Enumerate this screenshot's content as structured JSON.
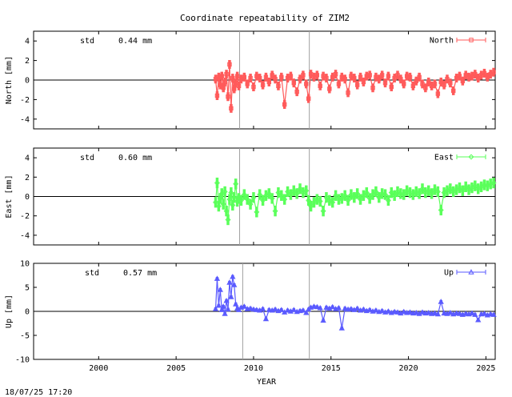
{
  "title": "Coordinate repeatability of ZIM2",
  "footer_timestamp": "18/07/25 17:20",
  "xlabel": "YEAR",
  "colors": {
    "north": "#ff5a5a",
    "east": "#5aff5a",
    "up": "#5a5aff",
    "frame": "#000000",
    "vline": "#a0a0a0"
  },
  "chart_data": [
    {
      "type": "line",
      "id": "north",
      "ylabel": "North [mm]",
      "legend": "North",
      "legend_marker": "square",
      "legend_placement": "top-right",
      "std_label": "std",
      "std_value": "0.44 mm",
      "xlim": [
        1995.8,
        2025.6
      ],
      "ylim": [
        -5,
        5
      ],
      "yticks": [
        -4,
        -2,
        0,
        2,
        4
      ],
      "xticks": [
        2000,
        2005,
        2010,
        2015,
        2020,
        2025
      ],
      "zero_line": true,
      "vlines": [
        2009.1,
        2013.6
      ],
      "series": [
        {
          "x": [
            2007.55,
            2007.65,
            2007.75,
            2007.85,
            2007.95,
            2008.05,
            2008.15,
            2008.25,
            2008.35,
            2008.45,
            2008.55,
            2008.65,
            2008.75,
            2008.85,
            2008.95,
            2009.05,
            2009.2,
            2009.4,
            2009.6,
            2009.8,
            2010.0,
            2010.2,
            2010.4,
            2010.6,
            2010.8,
            2011.0,
            2011.2,
            2011.4,
            2011.6,
            2011.8,
            2012.0,
            2012.2,
            2012.4,
            2012.6,
            2012.8,
            2013.0,
            2013.2,
            2013.4,
            2013.55,
            2013.7,
            2013.9,
            2014.1,
            2014.3,
            2014.5,
            2014.7,
            2014.9,
            2015.1,
            2015.3,
            2015.5,
            2015.7,
            2015.9,
            2016.1,
            2016.3,
            2016.5,
            2016.7,
            2016.9,
            2017.1,
            2017.3,
            2017.5,
            2017.7,
            2017.9,
            2018.1,
            2018.3,
            2018.5,
            2018.7,
            2018.9,
            2019.1,
            2019.3,
            2019.5,
            2019.7,
            2019.9,
            2020.1,
            2020.3,
            2020.5,
            2020.7,
            2020.9,
            2021.1,
            2021.3,
            2021.5,
            2021.7,
            2021.9,
            2022.1,
            2022.3,
            2022.5,
            2022.7,
            2022.9,
            2023.1,
            2023.3,
            2023.5,
            2023.7,
            2023.9,
            2024.1,
            2024.3,
            2024.5,
            2024.7,
            2024.9,
            2025.1,
            2025.3,
            2025.5
          ],
          "y": [
            0.1,
            -1.6,
            0.3,
            -0.5,
            0.4,
            -0.8,
            -0.2,
            0.6,
            -1.7,
            1.6,
            -2.9,
            0.2,
            -0.9,
            -0.3,
            0.4,
            -0.6,
            0.1,
            0.3,
            -0.4,
            0.2,
            -0.7,
            0.4,
            0.2,
            -0.5,
            0.3,
            -0.2,
            0.5,
            0.1,
            -0.6,
            0.3,
            -2.5,
            0.2,
            0.4,
            -0.3,
            -1.2,
            0.1,
            0.5,
            -0.4,
            -1.9,
            0.6,
            0.3,
            0.5,
            -0.6,
            0.4,
            0.2,
            -0.9,
            0.3,
            0.6,
            -0.4,
            0.3,
            0.1,
            -1.3,
            0.4,
            0.2,
            -0.5,
            0.3,
            -0.2,
            0.4,
            0.5,
            -0.8,
            0.3,
            0.1,
            0.5,
            -0.3,
            0.4,
            -0.7,
            0.2,
            0.5,
            0.1,
            -0.4,
            0.4,
            0.3,
            -0.6,
            -0.1,
            0.3,
            -0.4,
            -0.8,
            -0.2,
            -0.6,
            -0.4,
            -1.4,
            -0.2,
            -0.5,
            0.1,
            -0.3,
            -1.1,
            0.2,
            0.4,
            -0.1,
            0.5,
            0.3,
            0.4,
            0.6,
            0.2,
            0.5,
            0.7,
            0.3,
            0.6,
            0.8
          ],
          "spread": 0.45
        }
      ]
    },
    {
      "type": "line",
      "id": "east",
      "ylabel": "East [mm]",
      "legend": "East",
      "legend_marker": "diamond",
      "legend_placement": "top-right",
      "std_label": "std",
      "std_value": "0.60 mm",
      "xlim": [
        1995.8,
        2025.6
      ],
      "ylim": [
        -5,
        5
      ],
      "yticks": [
        -4,
        -2,
        0,
        2,
        4
      ],
      "xticks": [
        2000,
        2005,
        2010,
        2015,
        2020,
        2025
      ],
      "zero_line": true,
      "vlines": [
        2009.1,
        2013.6
      ],
      "series": [
        {
          "x": [
            2007.55,
            2007.65,
            2007.75,
            2007.85,
            2007.95,
            2008.05,
            2008.15,
            2008.25,
            2008.35,
            2008.45,
            2008.55,
            2008.65,
            2008.75,
            2008.85,
            2008.95,
            2009.05,
            2009.2,
            2009.4,
            2009.6,
            2009.8,
            2010.0,
            2010.2,
            2010.4,
            2010.6,
            2010.8,
            2011.0,
            2011.2,
            2011.4,
            2011.6,
            2011.8,
            2012.0,
            2012.2,
            2012.4,
            2012.6,
            2012.8,
            2013.0,
            2013.2,
            2013.4,
            2013.55,
            2013.7,
            2013.9,
            2014.1,
            2014.3,
            2014.5,
            2014.7,
            2014.9,
            2015.1,
            2015.3,
            2015.5,
            2015.7,
            2015.9,
            2016.1,
            2016.3,
            2016.5,
            2016.7,
            2016.9,
            2017.1,
            2017.3,
            2017.5,
            2017.7,
            2017.9,
            2018.1,
            2018.3,
            2018.5,
            2018.7,
            2018.9,
            2019.1,
            2019.3,
            2019.5,
            2019.7,
            2019.9,
            2020.1,
            2020.3,
            2020.5,
            2020.7,
            2020.9,
            2021.1,
            2021.3,
            2021.5,
            2021.7,
            2021.9,
            2022.1,
            2022.3,
            2022.5,
            2022.7,
            2022.9,
            2023.1,
            2023.3,
            2023.5,
            2023.7,
            2023.9,
            2024.1,
            2024.3,
            2024.5,
            2024.7,
            2024.9,
            2025.1,
            2025.3,
            2025.5
          ],
          "y": [
            -0.6,
            1.4,
            -1.0,
            -0.2,
            0.3,
            -0.8,
            0.5,
            -1.5,
            -2.4,
            -0.3,
            0.4,
            -0.9,
            -0.1,
            1.3,
            -0.5,
            -0.2,
            -0.4,
            0.2,
            -0.3,
            -0.8,
            -0.1,
            -1.6,
            0.2,
            -0.4,
            0.1,
            0.3,
            -0.2,
            -1.5,
            0.4,
            0.1,
            -0.3,
            0.5,
            0.2,
            0.6,
            0.3,
            0.8,
            0.4,
            0.6,
            -0.4,
            -1.0,
            -0.6,
            -0.3,
            -0.5,
            -1.5,
            -0.1,
            -0.4,
            -0.6,
            0.1,
            -0.3,
            -0.2,
            0.1,
            -0.4,
            0.2,
            -0.1,
            0.3,
            -0.3,
            0.1,
            0.4,
            -0.2,
            0.2,
            0.5,
            -0.1,
            0.3,
            0.2,
            -0.4,
            0.4,
            0.1,
            0.5,
            0.3,
            0.2,
            0.6,
            0.4,
            0.2,
            0.5,
            0.3,
            0.8,
            0.4,
            0.6,
            0.3,
            0.7,
            0.5,
            -1.4,
            0.4,
            0.6,
            0.8,
            0.5,
            0.7,
            0.9,
            0.6,
            1.0,
            0.7,
            0.9,
            1.1,
            0.8,
            1.0,
            1.2,
            1.1,
            1.3,
            1.4
          ],
          "spread": 0.55
        }
      ]
    },
    {
      "type": "line",
      "id": "up",
      "ylabel": "Up [mm]",
      "legend": "Up",
      "legend_marker": "triangle",
      "legend_placement": "top-right",
      "std_label": "std",
      "std_value": "0.57 mm",
      "xlim": [
        1995.8,
        2025.6
      ],
      "ylim": [
        -10,
        10
      ],
      "yticks": [
        -10,
        -5,
        0,
        5,
        10
      ],
      "xticks": [
        2000,
        2005,
        2010,
        2015,
        2020,
        2025
      ],
      "xticklabels": [
        "2000",
        "2005",
        "2010",
        "2015",
        "2020",
        "2025"
      ],
      "zero_line": true,
      "vlines": [
        2009.3,
        2013.6
      ],
      "series": [
        {
          "x": [
            2007.55,
            2007.65,
            2007.75,
            2007.85,
            2007.95,
            2008.05,
            2008.15,
            2008.25,
            2008.35,
            2008.45,
            2008.55,
            2008.65,
            2008.75,
            2008.85,
            2008.95,
            2009.05,
            2009.2,
            2009.4,
            2009.6,
            2009.8,
            2010.0,
            2010.2,
            2010.4,
            2010.6,
            2010.8,
            2011.0,
            2011.2,
            2011.4,
            2011.6,
            2011.8,
            2012.0,
            2012.2,
            2012.4,
            2012.6,
            2012.8,
            2013.0,
            2013.2,
            2013.4,
            2013.55,
            2013.7,
            2013.9,
            2014.1,
            2014.3,
            2014.5,
            2014.7,
            2014.9,
            2015.1,
            2015.3,
            2015.5,
            2015.7,
            2015.9,
            2016.1,
            2016.3,
            2016.5,
            2016.7,
            2016.9,
            2017.1,
            2017.3,
            2017.5,
            2017.7,
            2017.9,
            2018.1,
            2018.3,
            2018.5,
            2018.7,
            2018.9,
            2019.1,
            2019.3,
            2019.5,
            2019.7,
            2019.9,
            2020.1,
            2020.3,
            2020.5,
            2020.7,
            2020.9,
            2021.1,
            2021.3,
            2021.5,
            2021.7,
            2021.9,
            2022.1,
            2022.3,
            2022.5,
            2022.7,
            2022.9,
            2023.1,
            2023.3,
            2023.5,
            2023.7,
            2023.9,
            2024.1,
            2024.3,
            2024.5,
            2024.7,
            2024.9,
            2025.1,
            2025.3,
            2025.5
          ],
          "y": [
            0.5,
            6.8,
            1.2,
            4.5,
            0.3,
            1.0,
            -0.5,
            2.2,
            0.4,
            6.0,
            3.0,
            7.2,
            5.5,
            1.5,
            0.6,
            0.3,
            0.8,
            1.0,
            0.5,
            0.6,
            0.4,
            0.3,
            0.2,
            0.5,
            -1.6,
            0.3,
            0.2,
            0.4,
            0.1,
            0.3,
            -0.2,
            0.2,
            0.0,
            0.3,
            -0.1,
            0.1,
            0.2,
            -0.3,
            0.4,
            0.8,
            1.0,
            0.9,
            0.7,
            -1.9,
            0.8,
            0.6,
            0.9,
            0.5,
            0.7,
            -3.5,
            0.6,
            0.4,
            0.5,
            0.3,
            0.6,
            0.2,
            0.4,
            0.1,
            0.3,
            0.0,
            0.2,
            -0.1,
            0.1,
            -0.2,
            0.0,
            -0.3,
            -0.1,
            -0.2,
            -0.4,
            -0.1,
            -0.3,
            -0.2,
            -0.4,
            -0.3,
            -0.5,
            -0.2,
            -0.4,
            -0.3,
            -0.5,
            -0.4,
            -0.6,
            2.0,
            -0.4,
            -0.5,
            -0.3,
            -0.6,
            -0.4,
            -0.5,
            -0.7,
            -0.5,
            -0.6,
            -0.4,
            -0.7,
            -1.8,
            -0.6,
            -0.5,
            -0.8,
            -0.6,
            -0.7
          ],
          "spread": 0.35
        }
      ]
    }
  ]
}
